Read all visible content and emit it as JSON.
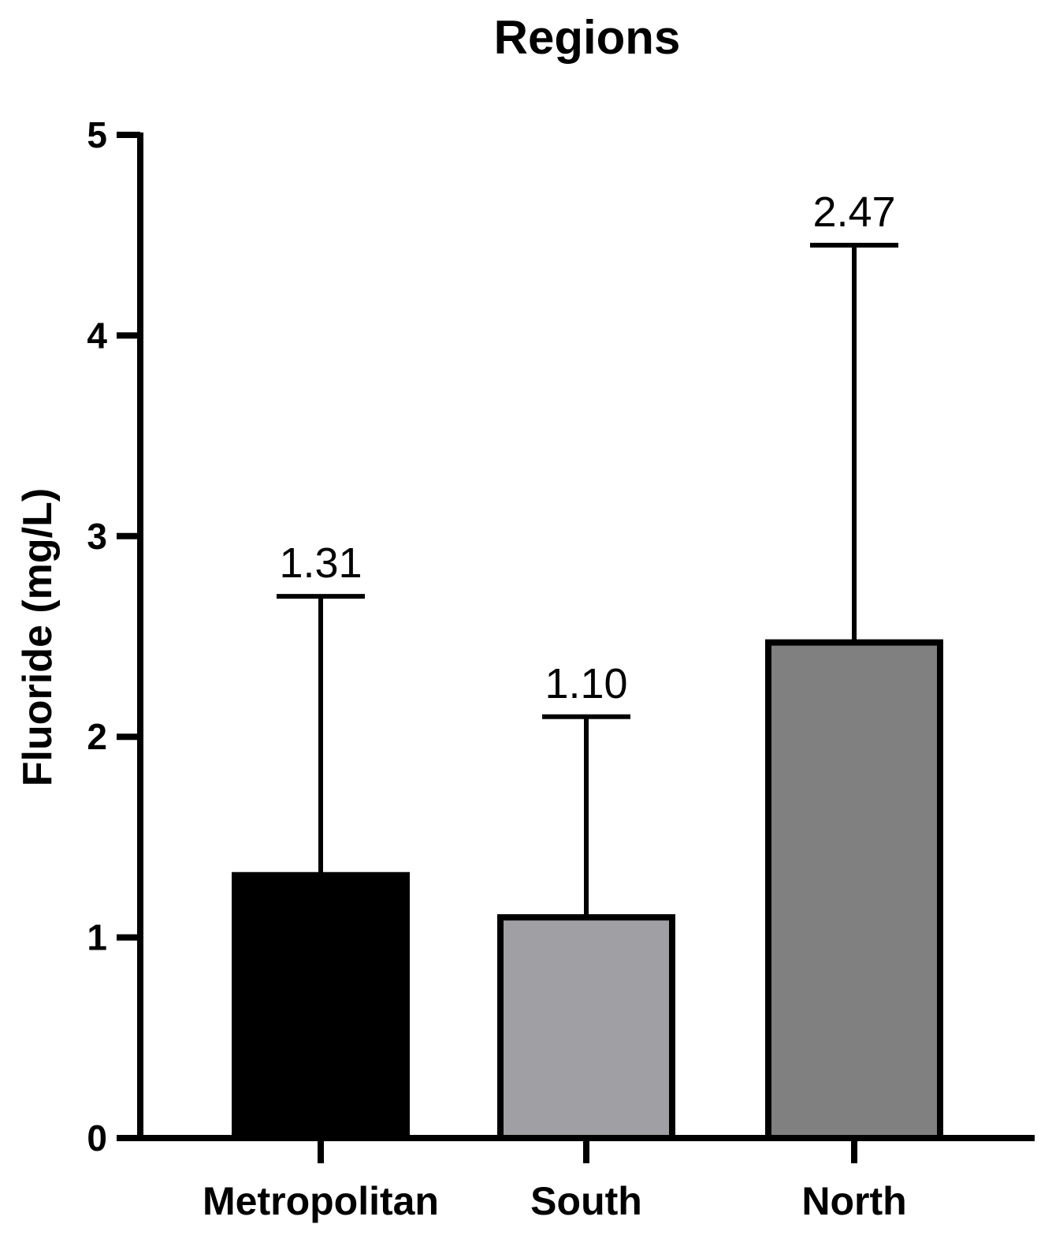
{
  "chart_data": {
    "type": "bar",
    "title": "Regions",
    "xlabel": "",
    "ylabel": "Fluoride (mg/L)",
    "ylim": [
      0,
      5
    ],
    "yticks": [
      "0",
      "1",
      "2",
      "3",
      "4",
      "5"
    ],
    "categories": [
      "Metropolitan",
      "South",
      "North"
    ],
    "values": [
      1.31,
      1.1,
      2.47
    ],
    "error_upper": [
      2.7,
      2.1,
      4.45
    ],
    "data_labels": [
      "1.31",
      "1.10",
      "2.47"
    ],
    "bar_colors": [
      "#000000",
      "#a0a0a4",
      "#808080"
    ],
    "grid": false,
    "legend": "none"
  }
}
